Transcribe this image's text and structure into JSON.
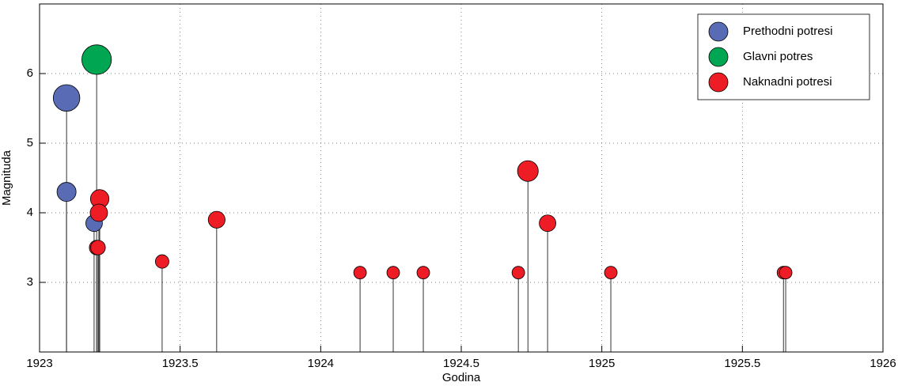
{
  "chart_data": {
    "type": "stem",
    "xlabel": "Godina",
    "ylabel": "Magnituda",
    "xlim": [
      1923,
      1926
    ],
    "ylim": [
      2,
      7
    ],
    "xticks": [
      1923,
      1923.5,
      1924,
      1924.5,
      1925,
      1925.5,
      1926
    ],
    "yticks": [
      3,
      4,
      5,
      6
    ],
    "grid": true,
    "legend": "upper right",
    "series": [
      {
        "name": "Prethodni potresi",
        "color": "#5a6bb5",
        "x": [
          1923.096,
          1923.096,
          1923.194
        ],
        "values": [
          5.65,
          4.3,
          3.85
        ]
      },
      {
        "name": "Glavni potres",
        "color": "#00a651",
        "x": [
          1923.203
        ],
        "values": [
          6.2
        ]
      },
      {
        "name": "Naknadni potresi",
        "color": "#ee1c25",
        "x": [
          1923.214,
          1923.211,
          1923.203,
          1923.208,
          1923.436,
          1923.63,
          1924.14,
          1924.258,
          1924.365,
          1924.703,
          1924.737,
          1924.807,
          1925.032,
          1925.646,
          1925.654
        ],
        "values": [
          4.2,
          4.0,
          3.5,
          3.5,
          3.3,
          3.9,
          3.14,
          3.14,
          3.14,
          3.14,
          4.6,
          3.85,
          3.14,
          3.14,
          3.14
        ]
      }
    ]
  }
}
